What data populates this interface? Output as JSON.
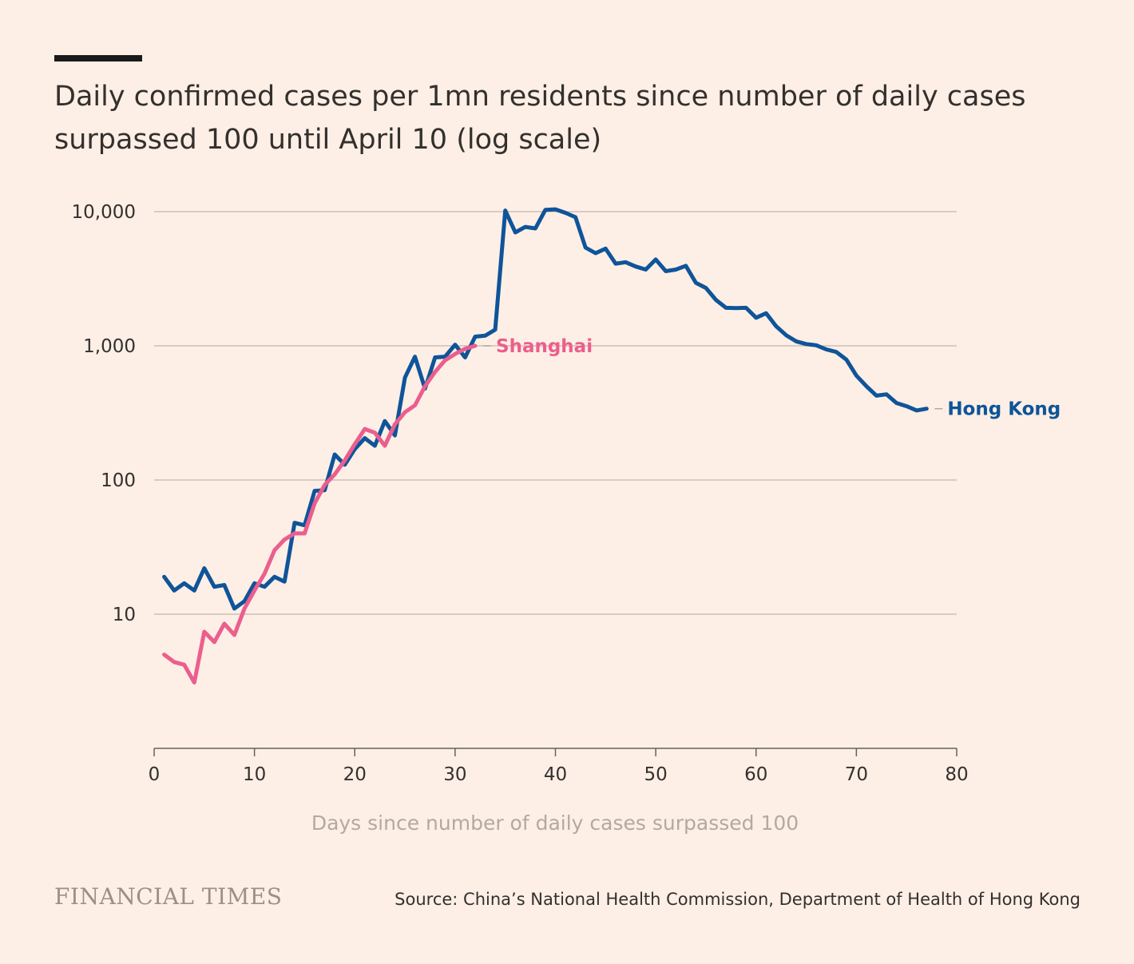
{
  "title": "Daily confirmed cases per 1mn residents since number of daily cases surpassed 100 until April 10 (log scale)",
  "brand": "FINANCIAL TIMES",
  "source": "Source: China’s National Health Commission, Department of Health of Hong Kong",
  "colors": {
    "background": "#fdefe5",
    "hong_kong": "#0f5499",
    "shanghai": "#eb5e8d",
    "grid": "#ccc1b7",
    "text": "#33302e",
    "xlabel": "#b3a9a1"
  },
  "chart_data": {
    "type": "line",
    "title": "Daily confirmed cases per 1mn residents since number of daily cases surpassed 100 until April 10 (log scale)",
    "xlabel": "Days since number of daily cases surpassed 100",
    "ylabel": "",
    "yscale": "log",
    "xlim": [
      0,
      80
    ],
    "ylim": [
      1,
      10000
    ],
    "x_ticks": [
      0,
      10,
      20,
      30,
      40,
      50,
      60,
      70,
      80
    ],
    "x_tick_labels": [
      "0",
      "10",
      "20",
      "30",
      "40",
      "50",
      "60",
      "70",
      "80"
    ],
    "y_ticks": [
      10,
      100,
      1000,
      10000
    ],
    "y_tick_labels": [
      "10",
      "100",
      "1,000",
      "10,000"
    ],
    "grid": true,
    "series": [
      {
        "name": "Hong Kong",
        "label": "Hong Kong",
        "color": "#0f5499",
        "x": [
          1,
          2,
          3,
          4,
          5,
          6,
          7,
          8,
          9,
          10,
          11,
          12,
          13,
          14,
          15,
          16,
          17,
          18,
          19,
          20,
          21,
          22,
          23,
          24,
          25,
          26,
          27,
          28,
          29,
          30,
          31,
          32,
          33,
          34,
          35,
          36,
          37,
          38,
          39,
          40,
          41,
          42,
          43,
          44,
          45,
          46,
          47,
          48,
          49,
          50,
          51,
          52,
          53,
          54,
          55,
          56,
          57,
          58,
          59,
          60,
          61,
          62,
          63,
          64,
          65,
          66,
          67,
          68,
          69,
          70,
          71,
          72,
          73,
          74,
          75,
          76,
          77
        ],
        "values": [
          19,
          15,
          17,
          15,
          22,
          16,
          16.5,
          11,
          12.5,
          17,
          16,
          19,
          17.5,
          48,
          46,
          83,
          84,
          155,
          130,
          170,
          205,
          180,
          275,
          215,
          580,
          830,
          480,
          820,
          830,
          1020,
          820,
          1170,
          1190,
          1320,
          10200,
          7000,
          7700,
          7500,
          10300,
          10400,
          9800,
          9100,
          5400,
          4900,
          5300,
          4100,
          4200,
          3900,
          3700,
          4400,
          3600,
          3700,
          3950,
          2950,
          2700,
          2200,
          1920,
          1910,
          1920,
          1620,
          1750,
          1400,
          1200,
          1080,
          1030,
          1010,
          940,
          900,
          790,
          600,
          500,
          425,
          435,
          375,
          355,
          330,
          340
        ]
      },
      {
        "name": "Shanghai",
        "label": "Shanghai",
        "color": "#eb5e8d",
        "x": [
          1,
          2,
          3,
          4,
          5,
          6,
          7,
          8,
          9,
          10,
          11,
          12,
          13,
          14,
          15,
          16,
          17,
          18,
          19,
          20,
          21,
          22,
          23,
          24,
          25,
          26,
          27,
          28,
          29,
          30,
          31,
          32
        ],
        "values": [
          5,
          4.4,
          4.2,
          3.1,
          7.4,
          6.2,
          8.5,
          7,
          11,
          15,
          20,
          30,
          36,
          40,
          40,
          67,
          92,
          110,
          140,
          185,
          240,
          225,
          180,
          260,
          320,
          360,
          500,
          640,
          780,
          870,
          950,
          1000
        ]
      }
    ]
  }
}
